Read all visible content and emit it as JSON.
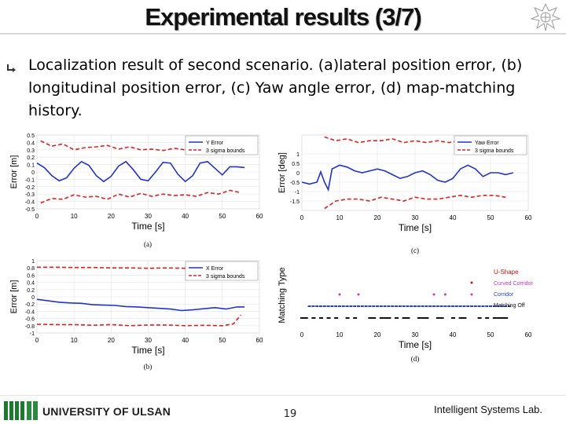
{
  "slide": {
    "title": "Experimental results (3/7)",
    "bullet": "Localization result of second scenario. (a)lateral position error, (b) longitudinal position error, (c) Yaw angle error, (d) map-matching history."
  },
  "footer": {
    "university": "UNIVERSITY OF ULSAN",
    "page": "19",
    "lab": "Intelligent Systems Lab."
  },
  "colors": {
    "estimate": "#2233cc",
    "bounds": "#dd2222",
    "u_shape": "#cc1111",
    "curved_corridor": "#cc33cc",
    "corridor": "#2244cc",
    "matching_off": "#111111"
  },
  "chart_data": [
    {
      "type": "line",
      "caption": "(a)",
      "xlabel": "Time [s]",
      "ylabel": "Error [m]",
      "xlim": [
        0,
        60
      ],
      "ylim": [
        -0.5,
        0.5
      ],
      "xticks": [
        "0",
        "10",
        "20",
        "30",
        "40",
        "50",
        "60"
      ],
      "yticks": [
        "0.5",
        "0.4",
        "0.3",
        "0.2",
        "0.1",
        "0",
        "-0.1",
        "-0.2",
        "-0.3",
        "-0.4",
        "-0.5"
      ],
      "legend": [
        "Y Error",
        "3 sigma bounds"
      ],
      "legend_position": "top-right",
      "series": [
        {
          "name": "Y Error",
          "x": [
            0,
            2,
            4,
            6,
            8,
            10,
            12,
            14,
            16,
            18,
            20,
            22,
            24,
            26,
            28,
            30,
            32,
            34,
            36,
            38,
            40,
            42,
            44,
            46,
            48,
            50,
            52,
            54,
            56
          ],
          "y": [
            0.12,
            0.06,
            -0.05,
            -0.12,
            -0.08,
            0.05,
            0.14,
            0.09,
            -0.05,
            -0.13,
            -0.06,
            0.08,
            0.14,
            0.03,
            -0.1,
            -0.12,
            0.0,
            0.13,
            0.12,
            -0.03,
            -0.13,
            -0.05,
            0.12,
            0.14,
            0.05,
            -0.04,
            0.07,
            0.07,
            0.06
          ]
        },
        {
          "name": "3 sigma bounds (upper)",
          "x": [
            1,
            4,
            7,
            10,
            13,
            16,
            19,
            22,
            25,
            28,
            31,
            34,
            37,
            40,
            43,
            46,
            49,
            52,
            55
          ],
          "y": [
            0.42,
            0.35,
            0.38,
            0.3,
            0.33,
            0.34,
            0.36,
            0.31,
            0.34,
            0.3,
            0.31,
            0.29,
            0.32,
            0.3,
            0.33,
            0.29,
            0.31,
            0.25,
            0.27
          ]
        },
        {
          "name": "3 sigma bounds (lower)",
          "x": [
            1,
            4,
            7,
            10,
            13,
            16,
            19,
            22,
            25,
            28,
            31,
            34,
            37,
            40,
            43,
            46,
            49,
            52,
            55
          ],
          "y": [
            -0.42,
            -0.36,
            -0.37,
            -0.31,
            -0.34,
            -0.33,
            -0.37,
            -0.3,
            -0.34,
            -0.29,
            -0.33,
            -0.3,
            -0.32,
            -0.31,
            -0.33,
            -0.28,
            -0.3,
            -0.25,
            -0.28
          ]
        }
      ]
    },
    {
      "type": "line",
      "caption": "(b)",
      "xlabel": "Time [s]",
      "ylabel": "Error [m]",
      "xlim": [
        0,
        60
      ],
      "ylim": [
        -1,
        1
      ],
      "xticks": [
        "0",
        "10",
        "20",
        "30",
        "40",
        "50",
        "60"
      ],
      "yticks": [
        "1",
        "0.8",
        "0.6",
        "0.4",
        "0.2",
        "0",
        "-0.2",
        "-0.4",
        "-0.6",
        "-0.8",
        "-1"
      ],
      "legend": [
        "X Error",
        "3 sigma bounds"
      ],
      "legend_position": "top-right",
      "series": [
        {
          "name": "X Error",
          "x": [
            0,
            3,
            6,
            9,
            12,
            15,
            18,
            21,
            24,
            27,
            30,
            33,
            36,
            39,
            42,
            45,
            48,
            51,
            54,
            56
          ],
          "y": [
            -0.07,
            -0.11,
            -0.15,
            -0.17,
            -0.18,
            -0.22,
            -0.23,
            -0.24,
            -0.27,
            -0.28,
            -0.3,
            -0.32,
            -0.34,
            -0.38,
            -0.36,
            -0.33,
            -0.3,
            -0.34,
            -0.28,
            -0.28
          ]
        },
        {
          "name": "3 sigma bounds (upper)",
          "x": [
            0,
            5,
            10,
            15,
            20,
            25,
            30,
            35,
            40,
            45,
            50,
            55
          ],
          "y": [
            0.82,
            0.82,
            0.81,
            0.81,
            0.8,
            0.8,
            0.79,
            0.8,
            0.79,
            0.79,
            0.77,
            0.8
          ]
        },
        {
          "name": "3 sigma bounds (lower)",
          "x": [
            0,
            5,
            10,
            15,
            20,
            25,
            30,
            35,
            40,
            45,
            50,
            53,
            55
          ],
          "y": [
            -0.76,
            -0.77,
            -0.77,
            -0.79,
            -0.77,
            -0.8,
            -0.78,
            -0.78,
            -0.8,
            -0.79,
            -0.8,
            -0.75,
            -0.5
          ]
        }
      ]
    },
    {
      "type": "line",
      "caption": "(c)",
      "xlabel": "Time [s]",
      "ylabel": "Error [deg]",
      "xlim": [
        0,
        60
      ],
      "ylim": [
        -2,
        2
      ],
      "xticks": [
        "0",
        "10",
        "20",
        "30",
        "40",
        "50",
        "60"
      ],
      "yticks": [
        "1",
        "0.5",
        "0",
        "-0.5",
        "-1",
        "-1.5"
      ],
      "legend": [
        "Yaw Error",
        "3 sigma bounds"
      ],
      "legend_position": "top-right",
      "series": [
        {
          "name": "Yaw Error",
          "x": [
            0,
            2,
            4,
            5,
            6,
            7,
            8,
            10,
            12,
            14,
            16,
            18,
            20,
            22,
            24,
            26,
            28,
            30,
            32,
            34,
            36,
            38,
            40,
            42,
            44,
            46,
            48,
            50,
            52,
            54,
            56
          ],
          "y": [
            -0.5,
            -0.6,
            -0.5,
            0.05,
            -0.5,
            -0.9,
            0.2,
            0.4,
            0.3,
            0.1,
            0.0,
            0.1,
            0.2,
            0.1,
            -0.1,
            -0.3,
            -0.2,
            0.0,
            0.1,
            -0.1,
            -0.4,
            -0.5,
            -0.3,
            0.2,
            0.4,
            0.2,
            -0.2,
            0.0,
            0.0,
            -0.1,
            0.0
          ]
        },
        {
          "name": "3 sigma bounds (upper)",
          "x": [
            6,
            9,
            12,
            15,
            18,
            21,
            24,
            27,
            30,
            33,
            36,
            39,
            42,
            45,
            48,
            51,
            54
          ],
          "y": [
            1.9,
            1.7,
            1.8,
            1.6,
            1.7,
            1.7,
            1.8,
            1.6,
            1.7,
            1.6,
            1.7,
            1.6,
            1.7,
            1.6,
            1.6,
            1.6,
            1.5
          ]
        },
        {
          "name": "3 sigma bounds (lower)",
          "x": [
            6,
            9,
            12,
            15,
            18,
            21,
            24,
            27,
            30,
            33,
            36,
            39,
            42,
            45,
            48,
            51,
            54
          ],
          "y": [
            -1.9,
            -1.5,
            -1.4,
            -1.4,
            -1.5,
            -1.3,
            -1.4,
            -1.5,
            -1.3,
            -1.4,
            -1.4,
            -1.3,
            -1.2,
            -1.3,
            -1.2,
            -1.2,
            -1.3
          ]
        }
      ]
    },
    {
      "type": "scatter",
      "caption": "(d)",
      "xlabel": "Time [s]",
      "ylabel": "Matching Type",
      "xlim": [
        0,
        60
      ],
      "xticks": [
        "0",
        "10",
        "20",
        "30",
        "40",
        "50",
        "60"
      ],
      "legend": [
        "U-Shape",
        "Curved Corridor",
        "Corridor",
        "Matching Off"
      ],
      "legend_position": "right",
      "series": [
        {
          "name": "U-Shape",
          "x": [
            45
          ],
          "level": 4
        },
        {
          "name": "Curved Corridor",
          "x": [
            10,
            15,
            35,
            38,
            45
          ],
          "level": 3
        },
        {
          "name": "Corridor",
          "x": [
            2,
            3,
            4,
            5,
            6,
            7,
            8,
            9,
            10,
            11,
            12,
            13,
            14,
            15,
            16,
            17,
            18,
            19,
            20,
            21,
            22,
            23,
            24,
            25,
            26,
            27,
            28,
            29,
            30,
            31,
            32,
            33,
            34,
            35,
            36,
            37,
            38,
            39,
            40,
            41,
            42,
            43,
            44,
            45,
            46,
            47,
            48,
            49,
            50,
            51,
            52,
            53,
            54,
            55
          ],
          "level": 2
        },
        {
          "name": "Matching Off",
          "x": [
            0,
            1,
            3,
            5,
            7,
            9,
            12,
            14,
            18,
            19,
            21,
            22,
            23,
            25,
            27,
            28,
            31,
            32,
            33,
            36,
            37,
            40,
            42,
            43,
            47,
            49,
            51,
            52,
            53,
            54
          ],
          "level": 1
        }
      ]
    }
  ]
}
